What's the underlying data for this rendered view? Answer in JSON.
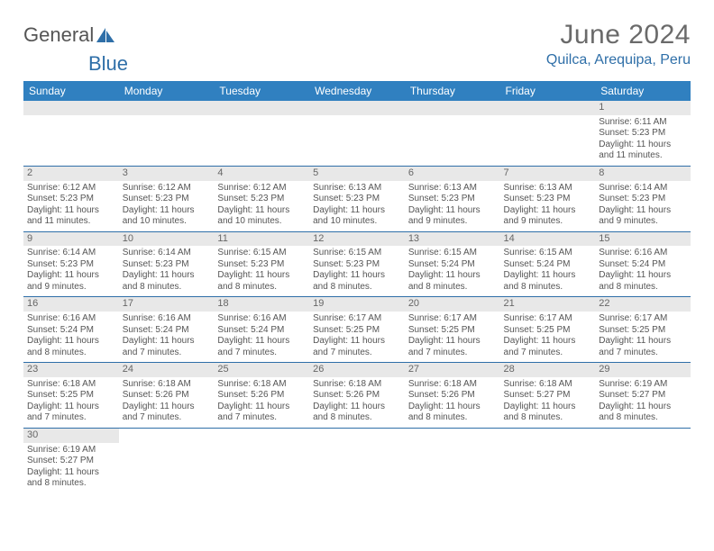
{
  "logo": {
    "text1": "General",
    "text2": "Blue"
  },
  "title": "June 2024",
  "location": "Quilca, Arequipa, Peru",
  "colors": {
    "header_bg": "#3080c0",
    "header_text": "#ffffff",
    "accent": "#2f6fa8",
    "daynum_bg": "#e8e8e8",
    "body_text": "#555555",
    "title_text": "#6a6a6a"
  },
  "day_names": [
    "Sunday",
    "Monday",
    "Tuesday",
    "Wednesday",
    "Thursday",
    "Friday",
    "Saturday"
  ],
  "weeks": [
    [
      {
        "n": "",
        "sr": "",
        "ss": "",
        "d": ""
      },
      {
        "n": "",
        "sr": "",
        "ss": "",
        "d": ""
      },
      {
        "n": "",
        "sr": "",
        "ss": "",
        "d": ""
      },
      {
        "n": "",
        "sr": "",
        "ss": "",
        "d": ""
      },
      {
        "n": "",
        "sr": "",
        "ss": "",
        "d": ""
      },
      {
        "n": "",
        "sr": "",
        "ss": "",
        "d": ""
      },
      {
        "n": "1",
        "sr": "Sunrise: 6:11 AM",
        "ss": "Sunset: 5:23 PM",
        "d": "Daylight: 11 hours and 11 minutes."
      }
    ],
    [
      {
        "n": "2",
        "sr": "Sunrise: 6:12 AM",
        "ss": "Sunset: 5:23 PM",
        "d": "Daylight: 11 hours and 11 minutes."
      },
      {
        "n": "3",
        "sr": "Sunrise: 6:12 AM",
        "ss": "Sunset: 5:23 PM",
        "d": "Daylight: 11 hours and 10 minutes."
      },
      {
        "n": "4",
        "sr": "Sunrise: 6:12 AM",
        "ss": "Sunset: 5:23 PM",
        "d": "Daylight: 11 hours and 10 minutes."
      },
      {
        "n": "5",
        "sr": "Sunrise: 6:13 AM",
        "ss": "Sunset: 5:23 PM",
        "d": "Daylight: 11 hours and 10 minutes."
      },
      {
        "n": "6",
        "sr": "Sunrise: 6:13 AM",
        "ss": "Sunset: 5:23 PM",
        "d": "Daylight: 11 hours and 9 minutes."
      },
      {
        "n": "7",
        "sr": "Sunrise: 6:13 AM",
        "ss": "Sunset: 5:23 PM",
        "d": "Daylight: 11 hours and 9 minutes."
      },
      {
        "n": "8",
        "sr": "Sunrise: 6:14 AM",
        "ss": "Sunset: 5:23 PM",
        "d": "Daylight: 11 hours and 9 minutes."
      }
    ],
    [
      {
        "n": "9",
        "sr": "Sunrise: 6:14 AM",
        "ss": "Sunset: 5:23 PM",
        "d": "Daylight: 11 hours and 9 minutes."
      },
      {
        "n": "10",
        "sr": "Sunrise: 6:14 AM",
        "ss": "Sunset: 5:23 PM",
        "d": "Daylight: 11 hours and 8 minutes."
      },
      {
        "n": "11",
        "sr": "Sunrise: 6:15 AM",
        "ss": "Sunset: 5:23 PM",
        "d": "Daylight: 11 hours and 8 minutes."
      },
      {
        "n": "12",
        "sr": "Sunrise: 6:15 AM",
        "ss": "Sunset: 5:23 PM",
        "d": "Daylight: 11 hours and 8 minutes."
      },
      {
        "n": "13",
        "sr": "Sunrise: 6:15 AM",
        "ss": "Sunset: 5:24 PM",
        "d": "Daylight: 11 hours and 8 minutes."
      },
      {
        "n": "14",
        "sr": "Sunrise: 6:15 AM",
        "ss": "Sunset: 5:24 PM",
        "d": "Daylight: 11 hours and 8 minutes."
      },
      {
        "n": "15",
        "sr": "Sunrise: 6:16 AM",
        "ss": "Sunset: 5:24 PM",
        "d": "Daylight: 11 hours and 8 minutes."
      }
    ],
    [
      {
        "n": "16",
        "sr": "Sunrise: 6:16 AM",
        "ss": "Sunset: 5:24 PM",
        "d": "Daylight: 11 hours and 8 minutes."
      },
      {
        "n": "17",
        "sr": "Sunrise: 6:16 AM",
        "ss": "Sunset: 5:24 PM",
        "d": "Daylight: 11 hours and 7 minutes."
      },
      {
        "n": "18",
        "sr": "Sunrise: 6:16 AM",
        "ss": "Sunset: 5:24 PM",
        "d": "Daylight: 11 hours and 7 minutes."
      },
      {
        "n": "19",
        "sr": "Sunrise: 6:17 AM",
        "ss": "Sunset: 5:25 PM",
        "d": "Daylight: 11 hours and 7 minutes."
      },
      {
        "n": "20",
        "sr": "Sunrise: 6:17 AM",
        "ss": "Sunset: 5:25 PM",
        "d": "Daylight: 11 hours and 7 minutes."
      },
      {
        "n": "21",
        "sr": "Sunrise: 6:17 AM",
        "ss": "Sunset: 5:25 PM",
        "d": "Daylight: 11 hours and 7 minutes."
      },
      {
        "n": "22",
        "sr": "Sunrise: 6:17 AM",
        "ss": "Sunset: 5:25 PM",
        "d": "Daylight: 11 hours and 7 minutes."
      }
    ],
    [
      {
        "n": "23",
        "sr": "Sunrise: 6:18 AM",
        "ss": "Sunset: 5:25 PM",
        "d": "Daylight: 11 hours and 7 minutes."
      },
      {
        "n": "24",
        "sr": "Sunrise: 6:18 AM",
        "ss": "Sunset: 5:26 PM",
        "d": "Daylight: 11 hours and 7 minutes."
      },
      {
        "n": "25",
        "sr": "Sunrise: 6:18 AM",
        "ss": "Sunset: 5:26 PM",
        "d": "Daylight: 11 hours and 7 minutes."
      },
      {
        "n": "26",
        "sr": "Sunrise: 6:18 AM",
        "ss": "Sunset: 5:26 PM",
        "d": "Daylight: 11 hours and 8 minutes."
      },
      {
        "n": "27",
        "sr": "Sunrise: 6:18 AM",
        "ss": "Sunset: 5:26 PM",
        "d": "Daylight: 11 hours and 8 minutes."
      },
      {
        "n": "28",
        "sr": "Sunrise: 6:18 AM",
        "ss": "Sunset: 5:27 PM",
        "d": "Daylight: 11 hours and 8 minutes."
      },
      {
        "n": "29",
        "sr": "Sunrise: 6:19 AM",
        "ss": "Sunset: 5:27 PM",
        "d": "Daylight: 11 hours and 8 minutes."
      }
    ],
    [
      {
        "n": "30",
        "sr": "Sunrise: 6:19 AM",
        "ss": "Sunset: 5:27 PM",
        "d": "Daylight: 11 hours and 8 minutes."
      },
      {
        "n": "",
        "sr": "",
        "ss": "",
        "d": ""
      },
      {
        "n": "",
        "sr": "",
        "ss": "",
        "d": ""
      },
      {
        "n": "",
        "sr": "",
        "ss": "",
        "d": ""
      },
      {
        "n": "",
        "sr": "",
        "ss": "",
        "d": ""
      },
      {
        "n": "",
        "sr": "",
        "ss": "",
        "d": ""
      },
      {
        "n": "",
        "sr": "",
        "ss": "",
        "d": ""
      }
    ]
  ]
}
